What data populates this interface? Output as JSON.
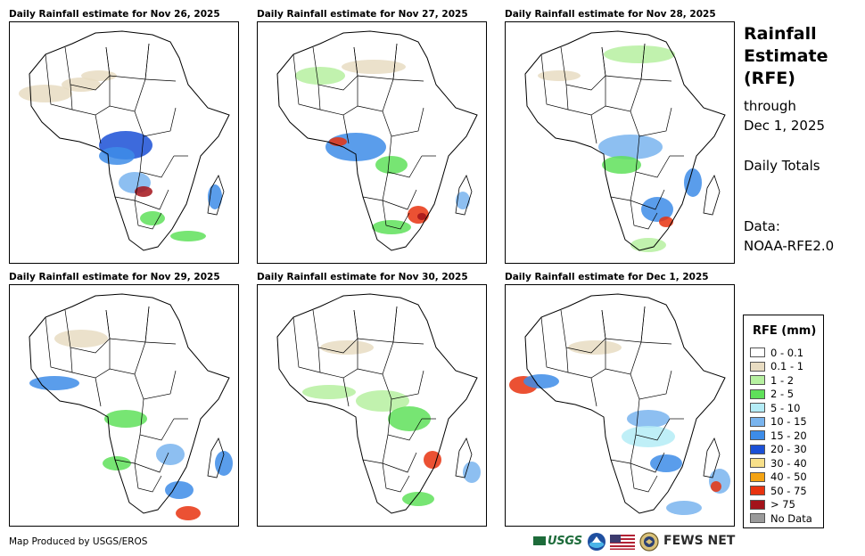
{
  "panels": [
    {
      "title": "Daily Rainfall estimate for Nov 26, 2025"
    },
    {
      "title": "Daily Rainfall estimate for Nov 27, 2025"
    },
    {
      "title": "Daily Rainfall estimate for Nov 28, 2025"
    },
    {
      "title": "Daily Rainfall estimate for Nov 29, 2025"
    },
    {
      "title": "Daily Rainfall estimate for Nov 30, 2025"
    },
    {
      "title": "Daily Rainfall estimate for Dec 1, 2025"
    }
  ],
  "side": {
    "title_lines": [
      "Rainfall",
      "Estimate",
      "(RFE)"
    ],
    "through": "through",
    "date": "Dec 1, 2025",
    "totals": "Daily Totals",
    "data_label": "Data:",
    "data_source": "NOAA-RFE2.0"
  },
  "legend": {
    "title": "RFE (mm)",
    "items": [
      {
        "label": "0 - 0.1",
        "color": "#ffffff"
      },
      {
        "label": "0.1 - 1",
        "color": "#e8dcc2"
      },
      {
        "label": "1 - 2",
        "color": "#b6f0a0"
      },
      {
        "label": "2 - 5",
        "color": "#5fe05a"
      },
      {
        "label": "5 - 10",
        "color": "#b4ecf6"
      },
      {
        "label": "10 - 15",
        "color": "#79b4ee"
      },
      {
        "label": "15 - 20",
        "color": "#3d8ce8"
      },
      {
        "label": "20 - 30",
        "color": "#1b50d6"
      },
      {
        "label": "30 - 40",
        "color": "#f7e08a"
      },
      {
        "label": "40 - 50",
        "color": "#f3a314"
      },
      {
        "label": "50 - 75",
        "color": "#e8330f"
      },
      {
        "label": "> 75",
        "color": "#a3131a"
      },
      {
        "label": "No Data",
        "color": "#9a9a9a"
      }
    ]
  },
  "footer": {
    "credit": "Map Produced by USGS/EROS"
  },
  "logos": {
    "usgs": "USGS",
    "fews": "FEWS NET"
  }
}
